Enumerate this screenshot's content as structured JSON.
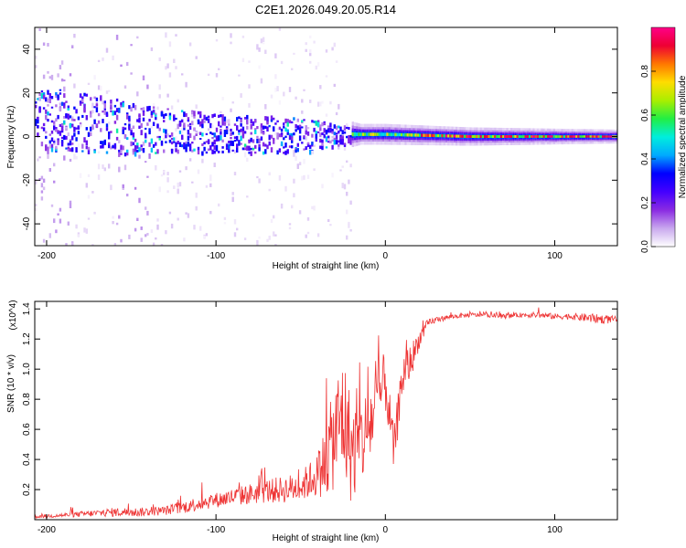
{
  "chart_data": [
    {
      "type": "heatmap",
      "title": "C2E1.2026.049.20.05.R14",
      "xlabel": "Height of straight line (km)",
      "ylabel": "Frequency (Hz)",
      "xlim": [
        -207,
        137
      ],
      "ylim": [
        -50,
        50
      ],
      "xticks": [
        -200,
        -100,
        0,
        100
      ],
      "yticks": [
        -40,
        -20,
        0,
        20,
        40
      ],
      "xtick_labels": [
        "-200",
        "-100",
        "0",
        "100"
      ],
      "ytick_labels": [
        "-40",
        "-20",
        "0",
        "20",
        "40"
      ],
      "colorbar": {
        "label": "Normalized spectral amplitude",
        "range": [
          0,
          1
        ],
        "ticks": [
          0,
          0.2,
          0.4,
          0.6,
          0.8
        ],
        "tick_labels": [
          "0.0",
          "0.2",
          "0.4",
          "0.6",
          "0.8"
        ],
        "colormap": [
          "#ffffff",
          "#c9a8ee",
          "#8a2be2",
          "#4400ff",
          "#0000ff",
          "#00aaff",
          "#00eedd",
          "#22ee44",
          "#aaee00",
          "#ffdd00",
          "#ff7700",
          "#ee0033",
          "#ff0088"
        ]
      },
      "description_points": {
        "band_center_hz": [
          [
            -185,
            8
          ],
          [
            -150,
            4
          ],
          [
            -100,
            2
          ],
          [
            -50,
            1
          ],
          [
            -20,
            1
          ],
          [
            0,
            1
          ],
          [
            50,
            0
          ],
          [
            135,
            0
          ]
        ],
        "band_halfwidth_hz": [
          [
            -185,
            14
          ],
          [
            -150,
            12
          ],
          [
            -100,
            9
          ],
          [
            -50,
            8
          ],
          [
            -30,
            5
          ],
          [
            -15,
            3
          ],
          [
            0,
            3
          ],
          [
            135,
            2
          ]
        ]
      }
    },
    {
      "type": "line",
      "xlabel": "Height of straight line (km)",
      "ylabel": "SNR (10 * v/v)",
      "y_scale_note": "(x10^4)",
      "xlim": [
        -207,
        137
      ],
      "ylim": [
        0,
        1.45
      ],
      "xticks": [
        -200,
        -100,
        0,
        100
      ],
      "yticks": [
        0.2,
        0.4,
        0.6,
        0.8,
        1.0,
        1.2,
        1.4
      ],
      "xtick_labels": [
        "-200",
        "-100",
        "0",
        "100"
      ],
      "ytick_labels": [
        "0.2",
        "0.4",
        "0.6",
        "0.8",
        "1.0",
        "1.2",
        "1.4"
      ],
      "series": [
        {
          "name": "SNR",
          "color": "#ee3333",
          "x": [
            -207,
            -190,
            -175,
            -160,
            -145,
            -130,
            -120,
            -110,
            -100,
            -90,
            -80,
            -70,
            -60,
            -50,
            -45,
            -40,
            -35,
            -30,
            -25,
            -20,
            -15,
            -10,
            -5,
            0,
            5,
            10,
            15,
            20,
            25,
            30,
            40,
            50,
            60,
            70,
            80,
            90,
            100,
            110,
            120,
            130,
            137
          ],
          "y": [
            0.02,
            0.03,
            0.04,
            0.05,
            0.05,
            0.06,
            0.08,
            0.11,
            0.13,
            0.15,
            0.17,
            0.19,
            0.2,
            0.22,
            0.26,
            0.3,
            0.4,
            0.55,
            0.7,
            0.45,
            0.5,
            0.6,
            0.78,
            0.92,
            0.45,
            0.95,
            1.05,
            1.2,
            1.3,
            1.33,
            1.35,
            1.36,
            1.36,
            1.35,
            1.36,
            1.36,
            1.35,
            1.35,
            1.34,
            1.33,
            1.33
          ],
          "noise": [
            0.01,
            0.015,
            0.02,
            0.03,
            0.03,
            0.03,
            0.04,
            0.05,
            0.05,
            0.06,
            0.07,
            0.08,
            0.09,
            0.1,
            0.12,
            0.15,
            0.25,
            0.35,
            0.45,
            0.35,
            0.3,
            0.3,
            0.25,
            0.2,
            0.15,
            0.15,
            0.12,
            0.06,
            0.03,
            0.02,
            0.015,
            0.015,
            0.015,
            0.015,
            0.015,
            0.02,
            0.02,
            0.02,
            0.03,
            0.03,
            0.02
          ]
        }
      ]
    }
  ]
}
